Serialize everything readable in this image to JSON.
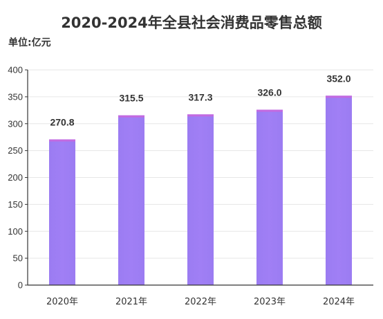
{
  "chart_data": {
    "type": "bar",
    "title": "2020-2024年全县社会消费品零售总额",
    "unit_label": "单位:亿元",
    "categories": [
      "2020年",
      "2021年",
      "2022年",
      "2023年",
      "2024年"
    ],
    "values": [
      270.8,
      315.5,
      317.3,
      326.0,
      352.0
    ],
    "data_labels": [
      "270.8",
      "315.5",
      "317.3",
      "326.0",
      "352.0"
    ],
    "yticks": [
      "0",
      "50",
      "100",
      "150",
      "200",
      "250",
      "300",
      "350",
      "400"
    ],
    "ylim": [
      0,
      400
    ],
    "grid": true,
    "legend": "none",
    "colors": {
      "bar": "#9b7cf2",
      "bar_top": "#c36ae0",
      "grid": "#e6e6e6",
      "axis": "#333333"
    }
  }
}
